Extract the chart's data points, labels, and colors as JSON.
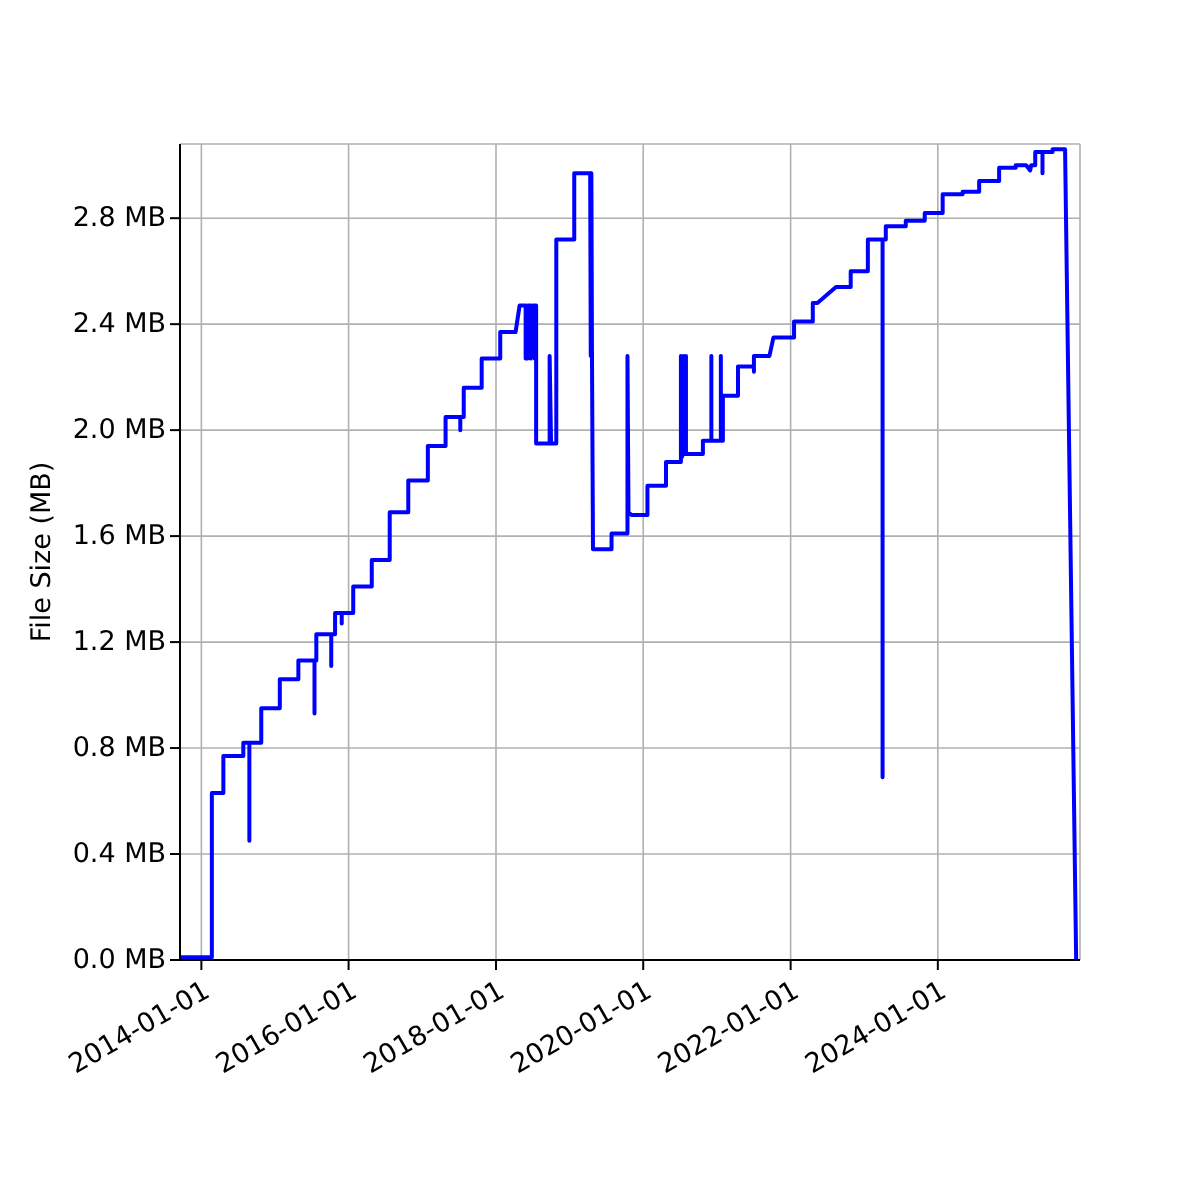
{
  "chart_data": {
    "type": "line",
    "ylabel": "File Size (MB)",
    "x": [
      "2013-09-17",
      "2014-02-22",
      "2014-02-22",
      "2014-04-20",
      "2014-04-20",
      "2014-07-28",
      "2014-07-28",
      "2014-08-27",
      "2014-08-27",
      "2014-08-27",
      "2014-10-25",
      "2014-10-25",
      "2015-01-25",
      "2015-01-25",
      "2015-04-27",
      "2015-04-27",
      "2015-07-16",
      "2015-07-16",
      "2015-07-16",
      "2015-07-25",
      "2015-07-25",
      "2015-10-07",
      "2015-10-07",
      "2015-10-07",
      "2015-10-26",
      "2015-10-26",
      "2015-11-28",
      "2015-11-28",
      "2015-11-28",
      "2016-01-24",
      "2016-01-24",
      "2016-04-25",
      "2016-04-25",
      "2016-07-23",
      "2016-07-23",
      "2016-10-23",
      "2016-10-23",
      "2017-01-28",
      "2017-01-28",
      "2017-04-26",
      "2017-04-26",
      "2017-07-08",
      "2017-07-08",
      "2017-07-08",
      "2017-07-25",
      "2017-07-25",
      "2017-10-22",
      "2017-10-22",
      "2018-01-22",
      "2018-01-22",
      "2018-04-08",
      "2018-04-28",
      "2018-05-28",
      "2018-05-28",
      "2018-06-07",
      "2018-06-07",
      "2018-06-22",
      "2018-06-22",
      "2018-07-02",
      "2018-07-11",
      "2018-07-11",
      "2018-07-19",
      "2018-07-19",
      "2018-09-24",
      "2018-09-24",
      "2018-10-01",
      "2018-10-27",
      "2018-10-27",
      "2019-01-24",
      "2019-01-24",
      "2019-04-13",
      "2019-04-16",
      "2019-04-19",
      "2019-04-22",
      "2019-04-27",
      "2019-07-28",
      "2019-07-28",
      "2019-10-15",
      "2019-10-15",
      "2019-10-20",
      "2019-11-04",
      "2020-01-22",
      "2020-01-22",
      "2020-04-23",
      "2020-04-23",
      "2020-07-06",
      "2020-07-06",
      "2020-07-12",
      "2020-07-19",
      "2020-07-25",
      "2020-07-31",
      "2020-07-31",
      "2020-10-23",
      "2020-10-23",
      "2020-12-04",
      "2020-12-04",
      "2020-12-04",
      "2021-01-20",
      "2021-01-20",
      "2021-01-20",
      "2021-01-30",
      "2021-01-30",
      "2021-04-15",
      "2021-04-15",
      "2021-07-03",
      "2021-07-03",
      "2021-07-03",
      "2021-09-18",
      "2021-10-08",
      "2022-01-18",
      "2022-01-18",
      "2022-04-21",
      "2022-04-21",
      "2022-05-14",
      "2022-08-14",
      "2022-10-26",
      "2022-10-26",
      "2023-01-19",
      "2023-01-19",
      "2023-04-02",
      "2023-04-02",
      "2023-04-02",
      "2023-04-18",
      "2023-04-18",
      "2023-07-26",
      "2023-07-26",
      "2023-10-28",
      "2023-10-28",
      "2024-01-25",
      "2024-01-25",
      "2024-05-03",
      "2024-05-03",
      "2024-07-24",
      "2024-07-24",
      "2024-10-31",
      "2024-10-31",
      "2025-01-21",
      "2025-01-21",
      "2025-03-14",
      "2025-04-03",
      "2025-04-08",
      "2025-04-28",
      "2025-04-28",
      "2025-06-03",
      "2025-06-03",
      "2025-06-03",
      "2025-07-23",
      "2025-07-23",
      "2025-09-23",
      "2025-11-17"
    ],
    "series": [
      {
        "color": "#0000ff",
        "values": [
          0.01,
          0.01,
          0.63,
          0.63,
          0.77,
          0.77,
          0.82,
          0.82,
          0.45,
          0.82,
          0.82,
          0.95,
          0.95,
          1.06,
          1.06,
          1.13,
          1.13,
          0.93,
          1.13,
          1.13,
          1.23,
          1.23,
          1.11,
          1.23,
          1.23,
          1.31,
          1.31,
          1.27,
          1.31,
          1.31,
          1.41,
          1.41,
          1.51,
          1.51,
          1.69,
          1.69,
          1.81,
          1.81,
          1.94,
          1.94,
          2.05,
          2.05,
          2.0,
          2.05,
          2.05,
          2.16,
          2.16,
          2.27,
          2.27,
          2.37,
          2.37,
          2.47,
          2.47,
          2.27,
          2.27,
          2.47,
          2.47,
          2.27,
          2.47,
          2.47,
          2.27,
          2.47,
          1.95,
          1.95,
          2.28,
          1.95,
          1.95,
          2.72,
          2.72,
          2.97,
          2.97,
          2.28,
          2.97,
          2.28,
          1.55,
          1.55,
          1.61,
          1.61,
          2.28,
          1.69,
          1.68,
          1.68,
          1.79,
          1.79,
          1.88,
          1.88,
          2.28,
          1.9,
          2.28,
          1.91,
          2.28,
          1.91,
          1.91,
          1.96,
          1.96,
          2.28,
          1.96,
          1.96,
          2.28,
          1.96,
          1.96,
          2.13,
          2.13,
          2.24,
          2.24,
          2.22,
          2.28,
          2.28,
          2.35,
          2.35,
          2.41,
          2.41,
          2.48,
          2.48,
          2.54,
          2.54,
          2.6,
          2.6,
          2.72,
          2.72,
          0.69,
          2.72,
          2.72,
          2.77,
          2.77,
          2.79,
          2.79,
          2.82,
          2.82,
          2.89,
          2.89,
          2.9,
          2.9,
          2.94,
          2.94,
          2.99,
          2.99,
          3.0,
          3.0,
          2.98,
          3.0,
          3.0,
          3.05,
          3.05,
          2.97,
          3.05,
          3.05,
          3.06,
          3.06,
          0
        ]
      }
    ],
    "xlim": [
      "2013-09-17",
      "2025-12-06"
    ],
    "xticks": [
      "2014-01-01",
      "2016-01-01",
      "2018-01-01",
      "2020-01-01",
      "2022-01-01",
      "2024-01-01"
    ],
    "ylim": [
      0,
      3.08
    ],
    "yticks": [
      {
        "value": 0,
        "label": "0.0 MB"
      },
      {
        "value": 0.4,
        "label": "0.4 MB"
      },
      {
        "value": 0.8,
        "label": "0.8 MB"
      },
      {
        "value": 1.2,
        "label": "1.2 MB"
      },
      {
        "value": 1.6,
        "label": "1.6 MB"
      },
      {
        "value": 2.0,
        "label": "2.0 MB"
      },
      {
        "value": 2.4,
        "label": "2.4 MB"
      },
      {
        "value": 2.8,
        "label": "2.8 MB"
      }
    ],
    "grid": true
  }
}
